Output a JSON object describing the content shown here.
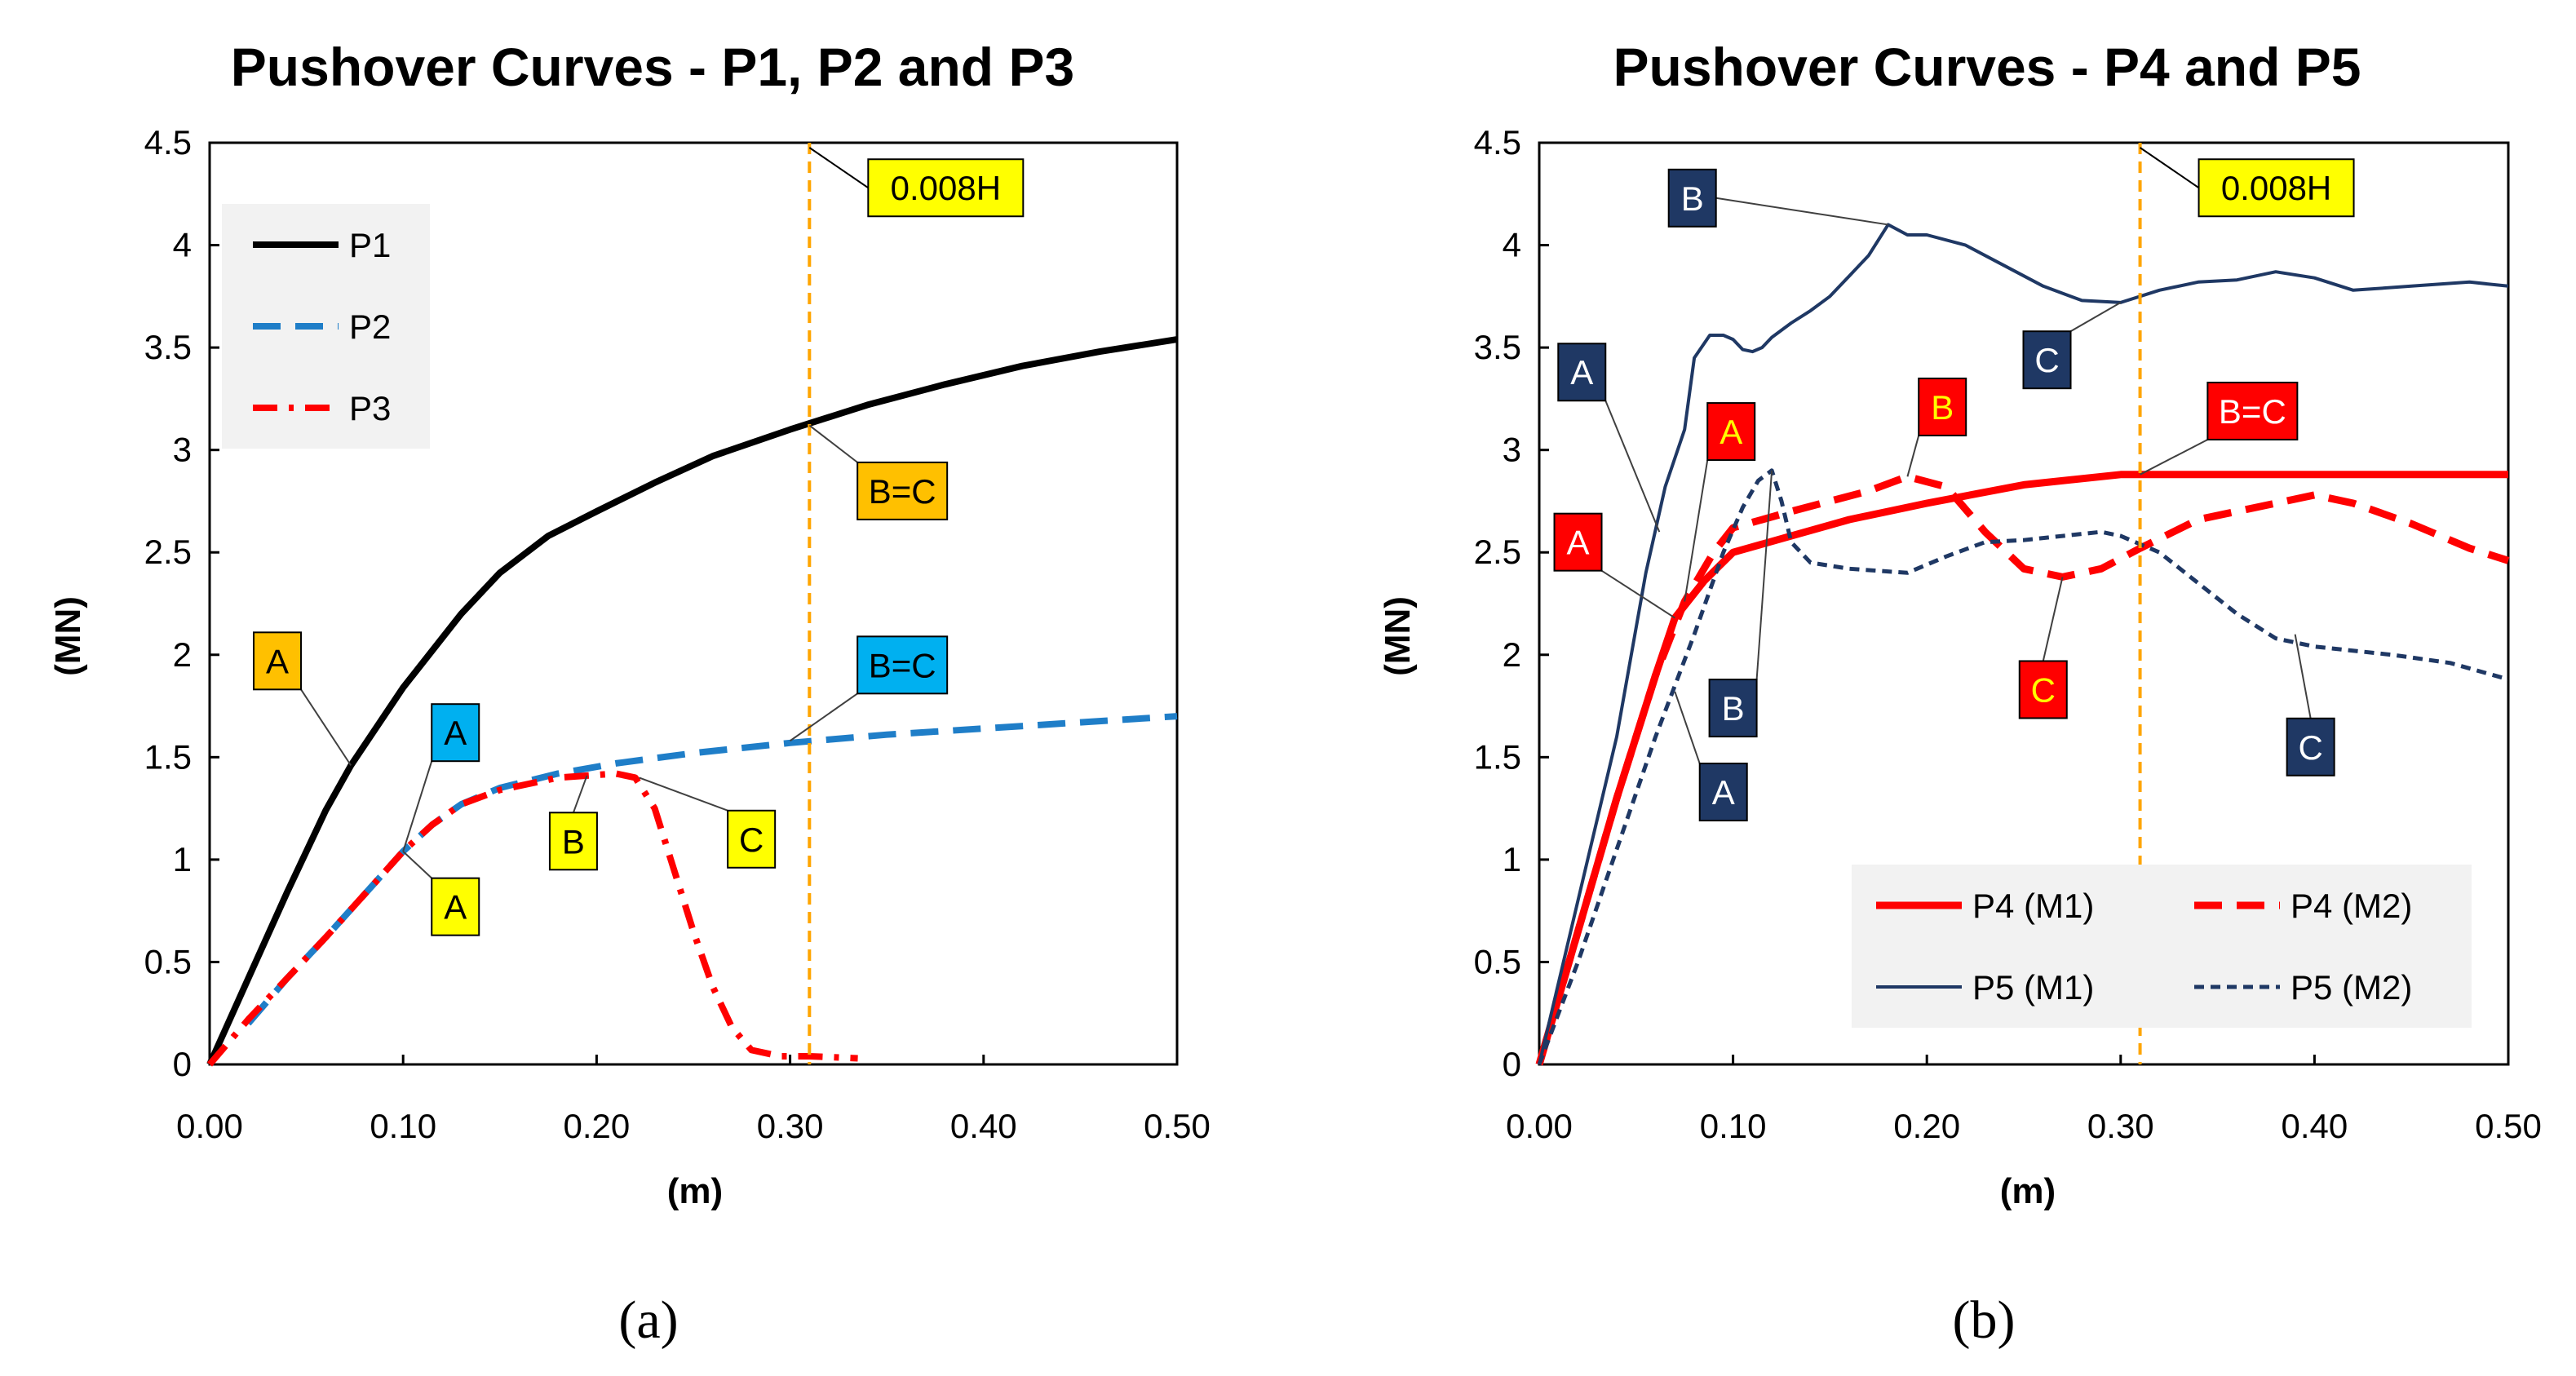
{
  "chart_data": [
    {
      "panel": "a",
      "caption": "(a)",
      "type": "line",
      "title": "Pushover Curves - P1, P2 and P3",
      "xlabel": "(m)",
      "ylabel": "(MN)",
      "xlim": [
        0,
        0.5
      ],
      "ylim": [
        0,
        4.5
      ],
      "xticks": [
        0,
        0.1,
        0.2,
        0.3,
        0.4,
        0.5
      ],
      "yticks": [
        0,
        0.5,
        1,
        1.5,
        2,
        2.5,
        3,
        3.5,
        4,
        4.5
      ],
      "xtick_labels": [
        "0.00",
        "0.10",
        "0.20",
        "0.30",
        "0.40",
        "0.50"
      ],
      "ytick_labels": [
        "0",
        "0.5",
        "1",
        "1.5",
        "2",
        "2.5",
        "3",
        "3.5",
        "4",
        "4.5"
      ],
      "grid": false,
      "legend_position": "top-left",
      "series": [
        {
          "name": "P1",
          "color": "#000000",
          "dash": "solid",
          "x": [
            0,
            0.02,
            0.04,
            0.06,
            0.073,
            0.1,
            0.13,
            0.15,
            0.175,
            0.2,
            0.23,
            0.26,
            0.3,
            0.34,
            0.38,
            0.42,
            0.46,
            0.5
          ],
          "y": [
            0,
            0.42,
            0.84,
            1.24,
            1.46,
            1.84,
            2.2,
            2.4,
            2.58,
            2.7,
            2.84,
            2.97,
            3.1,
            3.22,
            3.32,
            3.41,
            3.48,
            3.54
          ]
        },
        {
          "name": "P2",
          "color": "#1f7ec8",
          "dash": "dashed",
          "x": [
            0.02,
            0.04,
            0.06,
            0.08,
            0.1,
            0.115,
            0.13,
            0.15,
            0.18,
            0.21,
            0.25,
            0.3,
            0.35,
            0.4,
            0.45,
            0.5
          ],
          "y": [
            0.2,
            0.42,
            0.62,
            0.83,
            1.04,
            1.17,
            1.27,
            1.35,
            1.42,
            1.47,
            1.52,
            1.57,
            1.61,
            1.64,
            1.67,
            1.7
          ]
        },
        {
          "name": "P3",
          "color": "#ff0000",
          "dash": "dashdot",
          "x": [
            0,
            0.02,
            0.04,
            0.06,
            0.08,
            0.1,
            0.115,
            0.13,
            0.15,
            0.18,
            0.21,
            0.22,
            0.23,
            0.24,
            0.25,
            0.26,
            0.27,
            0.28,
            0.295,
            0.31,
            0.335
          ],
          "y": [
            0,
            0.22,
            0.42,
            0.62,
            0.83,
            1.04,
            1.17,
            1.27,
            1.34,
            1.4,
            1.42,
            1.4,
            1.25,
            0.95,
            0.65,
            0.38,
            0.18,
            0.07,
            0.04,
            0.04,
            0.03
          ]
        }
      ],
      "vline": {
        "x": 0.31,
        "color": "#ffa500",
        "label": "0.008H",
        "label_bg": "#ffff00"
      },
      "annotations": [
        {
          "text": "A",
          "bg": "#ffc000",
          "fg": "#000000",
          "point": [
            0.073,
            1.46
          ],
          "box": [
            0.035,
            1.97
          ]
        },
        {
          "text": "A",
          "bg": "#00b0f0",
          "fg": "#000000",
          "point": [
            0.1,
            1.04
          ],
          "box": [
            0.127,
            1.62
          ]
        },
        {
          "text": "A",
          "bg": "#ffff00",
          "fg": "#000000",
          "point": [
            0.1,
            1.04
          ],
          "box": [
            0.127,
            0.77
          ]
        },
        {
          "text": "B",
          "bg": "#ffff00",
          "fg": "#000000",
          "point": [
            0.195,
            1.41
          ],
          "box": [
            0.188,
            1.09
          ]
        },
        {
          "text": "C",
          "bg": "#ffff00",
          "fg": "#000000",
          "point": [
            0.222,
            1.4
          ],
          "box": [
            0.28,
            1.1
          ]
        },
        {
          "text": "B=C",
          "bg": "#ffc000",
          "fg": "#000000",
          "point": [
            0.31,
            3.12
          ],
          "box": [
            0.358,
            2.8
          ]
        },
        {
          "text": "B=C",
          "bg": "#00b0f0",
          "fg": "#000000",
          "point": [
            0.3,
            1.58
          ],
          "box": [
            0.358,
            1.95
          ]
        }
      ]
    },
    {
      "panel": "b",
      "caption": "(b)",
      "type": "line",
      "title": "Pushover Curves - P4 and P5",
      "xlabel": "(m)",
      "ylabel": "(MN)",
      "xlim": [
        0,
        0.5
      ],
      "ylim": [
        0,
        4.5
      ],
      "xticks": [
        0,
        0.1,
        0.2,
        0.3,
        0.4,
        0.5
      ],
      "yticks": [
        0,
        0.5,
        1,
        1.5,
        2,
        2.5,
        3,
        3.5,
        4,
        4.5
      ],
      "xtick_labels": [
        "0.00",
        "0.10",
        "0.20",
        "0.30",
        "0.40",
        "0.50"
      ],
      "ytick_labels": [
        "0",
        "0.5",
        "1",
        "1.5",
        "2",
        "2.5",
        "3",
        "3.5",
        "4",
        "4.5"
      ],
      "grid": false,
      "legend_position": "bottom-right",
      "series": [
        {
          "name": "P4 (M1)",
          "color": "#ff0000",
          "dash": "solid",
          "width": "thick",
          "x": [
            0,
            0.02,
            0.04,
            0.06,
            0.07,
            0.085,
            0.1,
            0.13,
            0.16,
            0.2,
            0.25,
            0.3,
            0.33,
            0.38,
            0.45,
            0.5
          ],
          "y": [
            0,
            0.65,
            1.3,
            1.9,
            2.18,
            2.36,
            2.5,
            2.58,
            2.66,
            2.74,
            2.83,
            2.88,
            2.88,
            2.88,
            2.88,
            2.88
          ]
        },
        {
          "name": "P4 (M2)",
          "color": "#ff0000",
          "dash": "dashed",
          "width": "thick",
          "x": [
            0,
            0.02,
            0.04,
            0.06,
            0.075,
            0.09,
            0.1,
            0.13,
            0.17,
            0.19,
            0.21,
            0.23,
            0.25,
            0.27,
            0.29,
            0.31,
            0.34,
            0.37,
            0.4,
            0.42,
            0.45,
            0.48,
            0.5
          ],
          "y": [
            0,
            0.65,
            1.3,
            1.9,
            2.26,
            2.5,
            2.62,
            2.7,
            2.8,
            2.87,
            2.82,
            2.6,
            2.42,
            2.38,
            2.42,
            2.52,
            2.66,
            2.72,
            2.78,
            2.74,
            2.64,
            2.52,
            2.46
          ]
        },
        {
          "name": "P5 (M1)",
          "color": "#1f3864",
          "dash": "solid",
          "width": "thin",
          "x": [
            0,
            0.02,
            0.04,
            0.055,
            0.065,
            0.075,
            0.08,
            0.088,
            0.095,
            0.1,
            0.105,
            0.11,
            0.115,
            0.12,
            0.13,
            0.14,
            0.15,
            0.16,
            0.17,
            0.18,
            0.19,
            0.2,
            0.22,
            0.24,
            0.26,
            0.28,
            0.3,
            0.32,
            0.34,
            0.36,
            0.38,
            0.4,
            0.42,
            0.45,
            0.48,
            0.5
          ],
          "y": [
            0,
            0.8,
            1.6,
            2.4,
            2.82,
            3.1,
            3.45,
            3.56,
            3.56,
            3.54,
            3.49,
            3.48,
            3.5,
            3.55,
            3.62,
            3.68,
            3.75,
            3.85,
            3.95,
            4.1,
            4.05,
            4.05,
            4.0,
            3.9,
            3.8,
            3.73,
            3.72,
            3.78,
            3.82,
            3.83,
            3.87,
            3.84,
            3.78,
            3.8,
            3.82,
            3.8
          ]
        },
        {
          "name": "P5 (M2)",
          "color": "#1f3864",
          "dash": "dotted",
          "width": "medium",
          "x": [
            0,
            0.02,
            0.04,
            0.06,
            0.08,
            0.095,
            0.105,
            0.113,
            0.12,
            0.125,
            0.13,
            0.14,
            0.16,
            0.19,
            0.21,
            0.23,
            0.25,
            0.27,
            0.29,
            0.3,
            0.32,
            0.34,
            0.36,
            0.38,
            0.4,
            0.44,
            0.47,
            0.5
          ],
          "y": [
            0,
            0.5,
            1.05,
            1.6,
            2.1,
            2.5,
            2.72,
            2.85,
            2.9,
            2.75,
            2.55,
            2.45,
            2.42,
            2.4,
            2.48,
            2.55,
            2.56,
            2.58,
            2.6,
            2.58,
            2.5,
            2.35,
            2.2,
            2.08,
            2.04,
            2.0,
            1.96,
            1.88
          ]
        }
      ],
      "vline": {
        "x": 0.31,
        "color": "#ffa500",
        "label": "0.008H",
        "label_bg": "#ffff00"
      },
      "annotations": [
        {
          "text": "B",
          "bg": "#1f3864",
          "fg": "#ffffff",
          "point": [
            0.18,
            4.1
          ],
          "box": [
            0.079,
            4.23
          ]
        },
        {
          "text": "A",
          "bg": "#1f3864",
          "fg": "#ffffff",
          "point": [
            0.062,
            2.6
          ],
          "box": [
            0.022,
            3.38
          ]
        },
        {
          "text": "C",
          "bg": "#1f3864",
          "fg": "#ffffff",
          "point": [
            0.3,
            3.72
          ],
          "box": [
            0.262,
            3.44
          ]
        },
        {
          "text": "A",
          "bg": "#ff0000",
          "fg": "#ffff00",
          "point": [
            0.075,
            2.26
          ],
          "box": [
            0.099,
            3.09
          ]
        },
        {
          "text": "B",
          "bg": "#ff0000",
          "fg": "#ffff00",
          "point": [
            0.19,
            2.87
          ],
          "box": [
            0.208,
            3.21
          ]
        },
        {
          "text": "B=C",
          "bg": "#ff0000",
          "fg": "#ffffff",
          "point": [
            0.31,
            2.88
          ],
          "box": [
            0.368,
            3.19
          ]
        },
        {
          "text": "A",
          "bg": "#ff0000",
          "fg": "#ffffff",
          "point": [
            0.07,
            2.18
          ],
          "box": [
            0.02,
            2.55
          ]
        },
        {
          "text": "B",
          "bg": "#1f3864",
          "fg": "#ffffff",
          "point": [
            0.12,
            2.9
          ],
          "box": [
            0.1,
            1.74
          ]
        },
        {
          "text": "C",
          "bg": "#ff0000",
          "fg": "#ffff00",
          "point": [
            0.27,
            2.38
          ],
          "box": [
            0.26,
            1.83
          ]
        },
        {
          "text": "A",
          "bg": "#1f3864",
          "fg": "#ffffff",
          "point": [
            0.07,
            1.82
          ],
          "box": [
            0.095,
            1.33
          ]
        },
        {
          "text": "C",
          "bg": "#1f3864",
          "fg": "#ffffff",
          "point": [
            0.39,
            2.1
          ],
          "box": [
            0.398,
            1.55
          ]
        }
      ]
    }
  ]
}
